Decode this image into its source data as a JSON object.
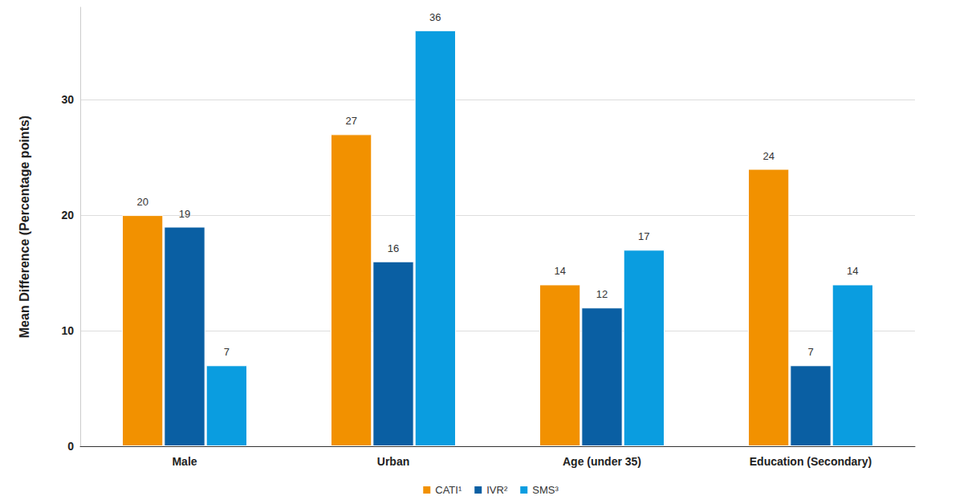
{
  "chart_data": {
    "type": "bar",
    "y_label": "Mean Difference (Percentage points)",
    "categories": [
      "Male",
      "Urban",
      "Age (under 35)",
      "Education (Secondary)"
    ],
    "series": [
      {
        "name": "CATI¹",
        "color": "#f29100",
        "values": [
          20,
          27,
          14,
          24
        ]
      },
      {
        "name": "IVR²",
        "color": "#0a5fa3",
        "values": [
          19,
          16,
          12,
          7
        ]
      },
      {
        "name": "SMS³",
        "color": "#0a9de0",
        "values": [
          7,
          36,
          17,
          14
        ]
      }
    ],
    "ylim": [
      0,
      38
    ],
    "yticks": [
      0,
      10,
      20,
      30
    ],
    "grid": true,
    "legend": "bottom",
    "data_labels": true
  }
}
